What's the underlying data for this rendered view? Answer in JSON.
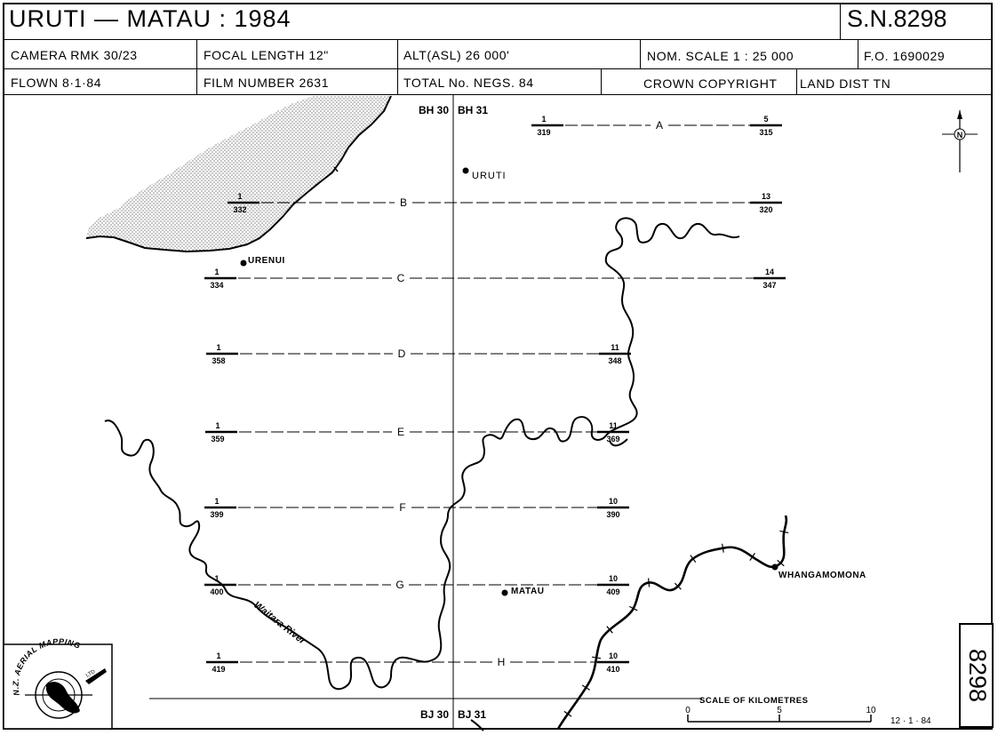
{
  "title": "URUTI — MATAU : 1984",
  "sn_number": "S.N.8298",
  "header": {
    "camera": "CAMERA   RMK 30/23",
    "focal_length": "FOCAL LENGTH   12\"",
    "alt": "ALT(ASL)      26 000'",
    "nom_scale": "NOM.  SCALE    1 : 25 000",
    "fo": "F.O.  1690029",
    "flown": "FLOWN   8·1·84",
    "film_number": "FILM NUMBER   2631",
    "total_negs": "TOTAL No. NEGS.   84",
    "crown": "CROWN     COPYRIGHT",
    "land_dist": "LAND DIST   TN"
  },
  "grid_labels": {
    "top_left": "BH 30",
    "top_right": "BH 31",
    "bottom_left": "BJ 30",
    "bottom_right": "BJ 31"
  },
  "flight_runs": [
    {
      "letter": "A",
      "start_top": "1",
      "start_bottom": "319",
      "end_top": "5",
      "end_bottom": "315"
    },
    {
      "letter": "B",
      "start_top": "1",
      "start_bottom": "332",
      "end_top": "13",
      "end_bottom": "320"
    },
    {
      "letter": "C",
      "start_top": "1",
      "start_bottom": "334",
      "end_top": "14",
      "end_bottom": "347"
    },
    {
      "letter": "D",
      "start_top": "1",
      "start_bottom": "358",
      "end_top": "11",
      "end_bottom": "348"
    },
    {
      "letter": "E",
      "start_top": "1",
      "start_bottom": "359",
      "end_top": "11",
      "end_bottom": "369"
    },
    {
      "letter": "F",
      "start_top": "1",
      "start_bottom": "399",
      "end_top": "10",
      "end_bottom": "390"
    },
    {
      "letter": "G",
      "start_top": "1",
      "start_bottom": "400",
      "end_top": "10",
      "end_bottom": "409"
    },
    {
      "letter": "H",
      "start_top": "1",
      "start_bottom": "419",
      "end_top": "10",
      "end_bottom": "410"
    }
  ],
  "places": {
    "uruti": "URUTI",
    "urenui": "URENUI",
    "matau": "MATAU",
    "whangamomona": "WHANGAMOMONA"
  },
  "river_label": "Waitara    River",
  "north_symbol": "N",
  "scale_bar": {
    "title": "SCALE     OF     KILOMETRES",
    "tick_0": "0",
    "tick_5": "5",
    "tick_10": "10"
  },
  "date_stamp": "12 · 1 · 84",
  "side_number": "8298",
  "logo_text": "N.Z. AERIAL MAPPING",
  "logo_small_text": "LTD"
}
